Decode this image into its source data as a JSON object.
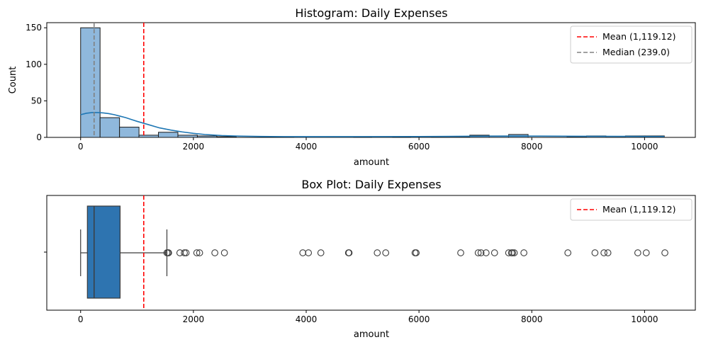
{
  "colors": {
    "hist_fill": "#8fb8dc",
    "hist_edge": "#1a1a1a",
    "kde": "#1f77b4",
    "box_fill": "#2e74b0",
    "mean": "#ff0000",
    "median": "#808080",
    "flier": "#3b3b3b"
  },
  "chart_data": [
    {
      "type": "bar",
      "subtype": "histogram",
      "title": "Histogram: Daily Expenses",
      "xlabel": "amount",
      "ylabel": "Count",
      "xlim": [
        -600,
        10900
      ],
      "ylim": [
        0,
        157
      ],
      "xticks": [
        0,
        2000,
        4000,
        6000,
        8000,
        10000
      ],
      "yticks": [
        0,
        50,
        100,
        150
      ],
      "bin_width": 345,
      "bins": [
        {
          "start": 0,
          "count": 150
        },
        {
          "start": 345,
          "count": 27
        },
        {
          "start": 690,
          "count": 14
        },
        {
          "start": 1035,
          "count": 3
        },
        {
          "start": 1380,
          "count": 7
        },
        {
          "start": 1725,
          "count": 3
        },
        {
          "start": 2070,
          "count": 2
        },
        {
          "start": 2415,
          "count": 1
        },
        {
          "start": 3795,
          "count": 1
        },
        {
          "start": 4140,
          "count": 1
        },
        {
          "start": 4485,
          "count": 1
        },
        {
          "start": 5175,
          "count": 1
        },
        {
          "start": 5865,
          "count": 1
        },
        {
          "start": 6555,
          "count": 1
        },
        {
          "start": 6900,
          "count": 3
        },
        {
          "start": 7245,
          "count": 2
        },
        {
          "start": 7590,
          "count": 4
        },
        {
          "start": 8625,
          "count": 1
        },
        {
          "start": 8970,
          "count": 2
        },
        {
          "start": 9660,
          "count": 2
        },
        {
          "start": 10005,
          "count": 2
        }
      ],
      "kde": {
        "x": [
          0,
          100,
          200,
          300,
          400,
          500,
          600,
          700,
          800,
          900,
          1000,
          1200,
          1400,
          1600,
          1800,
          2000,
          2200,
          2500,
          2800,
          3200,
          3600,
          4000,
          5000,
          6000,
          7000,
          7500,
          8000,
          9000,
          10000,
          10350
        ],
        "y": [
          31,
          33,
          34,
          34,
          33.5,
          32.5,
          31,
          29,
          27,
          24.5,
          22,
          17.5,
          13,
          10,
          7.5,
          5.5,
          4,
          2.5,
          1.8,
          1.3,
          1.1,
          1.0,
          1.1,
          1.2,
          1.6,
          1.8,
          1.8,
          1.5,
          1.3,
          1.2
        ]
      },
      "lines": [
        {
          "label": "Mean (1,119.12)",
          "x": 1119.12,
          "color": "#ff0000"
        },
        {
          "label": "Median (239.0)",
          "x": 239.0,
          "color": "#808080"
        }
      ],
      "legend": "top-right",
      "grid": false
    },
    {
      "type": "box",
      "title": "Box Plot: Daily Expenses",
      "xlabel": "amount",
      "xlim": [
        -600,
        10900
      ],
      "xticks": [
        0,
        2000,
        4000,
        6000,
        8000,
        10000
      ],
      "box": {
        "whisker_low": 0,
        "q1": 120,
        "median": 239,
        "q3": 700,
        "whisker_high": 1530
      },
      "outliers": [
        1530,
        1550,
        1560,
        1760,
        1840,
        1870,
        2060,
        2110,
        2380,
        2550,
        3940,
        4040,
        4260,
        4750,
        4760,
        5260,
        5410,
        5930,
        5950,
        6740,
        7050,
        7100,
        7190,
        7340,
        7590,
        7640,
        7660,
        7690,
        7860,
        8640,
        9120,
        9280,
        9350,
        9880,
        10030,
        10360
      ],
      "lines": [
        {
          "label": "Mean (1,119.12)",
          "x": 1119.12,
          "color": "#ff0000"
        }
      ],
      "legend": "top-right",
      "grid": false
    }
  ]
}
